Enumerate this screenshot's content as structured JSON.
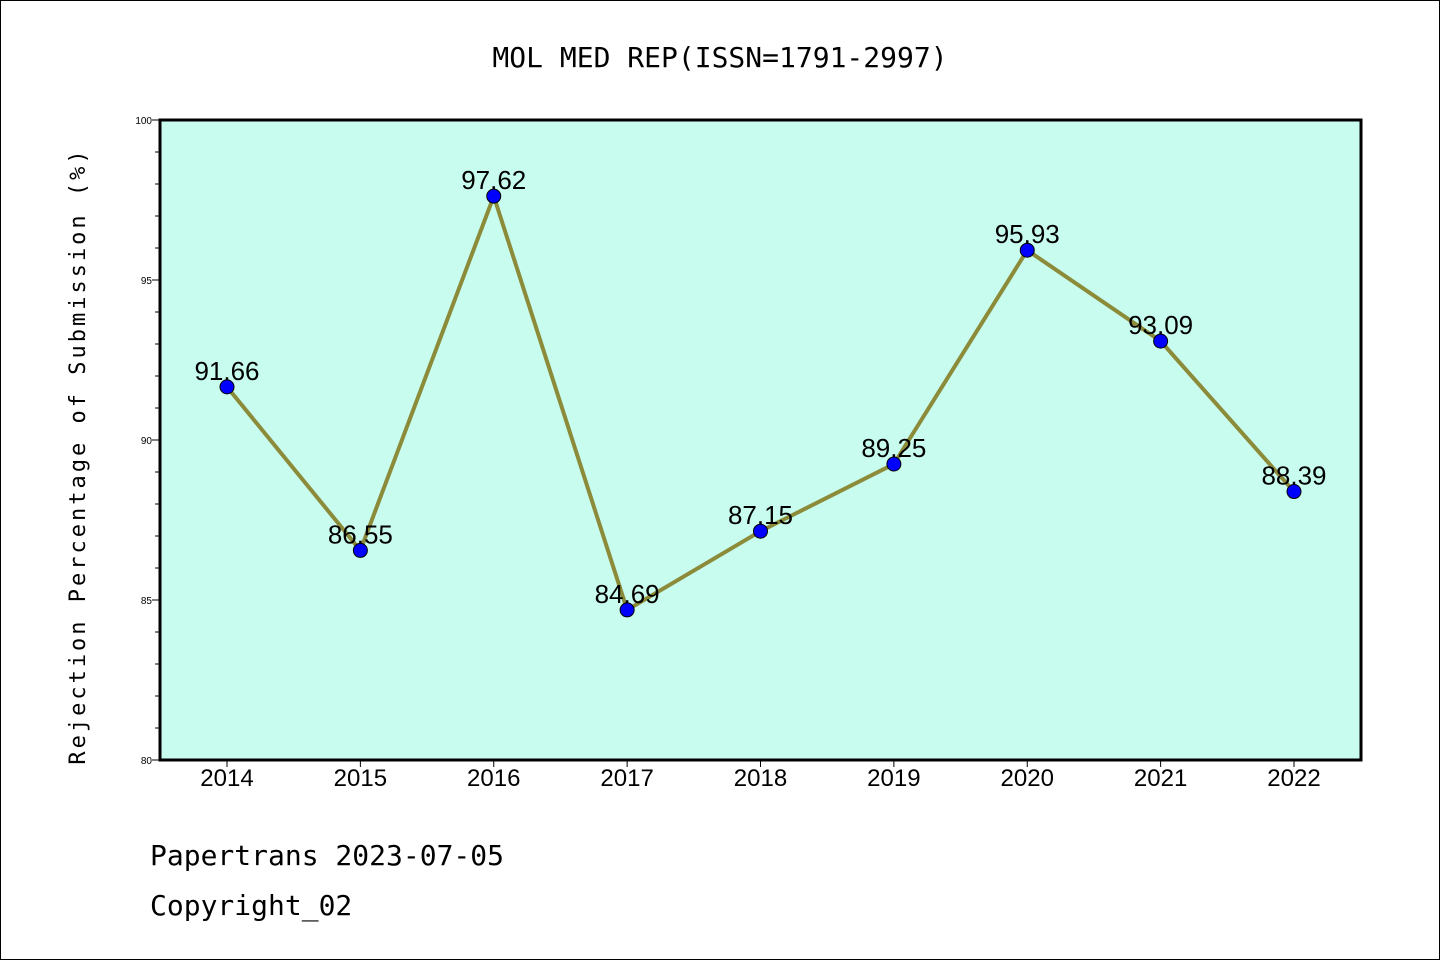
{
  "chart_data": {
    "type": "line",
    "title": "MOL MED REP(ISSN=1791-2997)",
    "ylabel": "Rejection Percentage of Submission (%)",
    "xlabel": "",
    "categories": [
      "2014",
      "2015",
      "2016",
      "2017",
      "2018",
      "2019",
      "2020",
      "2021",
      "2022"
    ],
    "values": [
      91.66,
      86.55,
      97.62,
      84.69,
      87.15,
      89.25,
      95.93,
      93.09,
      88.39
    ],
    "data_labels": [
      "91.66",
      "86.55",
      "97.62",
      "84.69",
      "87.15",
      "89.25",
      "95.93",
      "93.09",
      "88.39"
    ],
    "ylim": [
      80,
      100
    ],
    "yticks": [
      80,
      85,
      90,
      95,
      100
    ],
    "ytick_labels": [
      "80",
      "85",
      "90",
      "95",
      "100"
    ],
    "grid": false,
    "colors": {
      "plot_background": "#c8fcee",
      "line": "#8b8b3a",
      "marker": "#0000ff"
    }
  },
  "footer": {
    "line1": "Papertrans 2023-07-05",
    "line2": "Copyright_02"
  }
}
